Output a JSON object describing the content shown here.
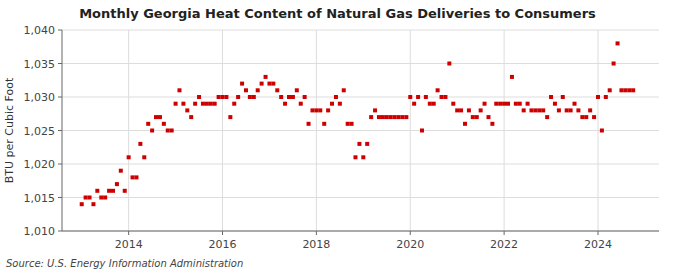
{
  "chart_data": {
    "type": "scatter",
    "title": "Monthly Georgia Heat Content of Natural Gas Deliveries to Consumers",
    "y_label": "BTU per Cubic Foot",
    "source": "Source: U.S. Energy Information Administration",
    "color": "#cc0000",
    "marker": "square",
    "grid": true,
    "xlim": [
      2012.58,
      2025.3
    ],
    "xticks": [
      2014,
      2016,
      2018,
      2020,
      2022,
      2024
    ],
    "ylim": [
      1010,
      1040
    ],
    "yticks": [
      {
        "value": 1010,
        "label": "1,010"
      },
      {
        "value": 1015,
        "label": "1,015"
      },
      {
        "value": 1020,
        "label": "1,020"
      },
      {
        "value": 1025,
        "label": "1,025"
      },
      {
        "value": 1030,
        "label": "1,030"
      },
      {
        "value": 1035,
        "label": "1,035"
      },
      {
        "value": 1040,
        "label": "1,040"
      }
    ],
    "x": [
      2013.0,
      2013.083,
      2013.167,
      2013.25,
      2013.333,
      2013.417,
      2013.5,
      2013.583,
      2013.667,
      2013.75,
      2013.833,
      2013.917,
      2014.0,
      2014.083,
      2014.167,
      2014.25,
      2014.333,
      2014.417,
      2014.5,
      2014.583,
      2014.667,
      2014.75,
      2014.833,
      2014.917,
      2015.0,
      2015.083,
      2015.167,
      2015.25,
      2015.333,
      2015.417,
      2015.5,
      2015.583,
      2015.667,
      2015.75,
      2015.833,
      2015.917,
      2016.0,
      2016.083,
      2016.167,
      2016.25,
      2016.333,
      2016.417,
      2016.5,
      2016.583,
      2016.667,
      2016.75,
      2016.833,
      2016.917,
      2017.0,
      2017.083,
      2017.167,
      2017.25,
      2017.333,
      2017.417,
      2017.5,
      2017.583,
      2017.667,
      2017.75,
      2017.833,
      2017.917,
      2018.0,
      2018.083,
      2018.167,
      2018.25,
      2018.333,
      2018.417,
      2018.5,
      2018.583,
      2018.667,
      2018.75,
      2018.833,
      2018.917,
      2019.0,
      2019.083,
      2019.167,
      2019.25,
      2019.333,
      2019.417,
      2019.5,
      2019.583,
      2019.667,
      2019.75,
      2019.833,
      2019.917,
      2020.0,
      2020.083,
      2020.167,
      2020.25,
      2020.333,
      2020.417,
      2020.5,
      2020.583,
      2020.667,
      2020.75,
      2020.833,
      2020.917,
      2021.0,
      2021.083,
      2021.167,
      2021.25,
      2021.333,
      2021.417,
      2021.5,
      2021.583,
      2021.667,
      2021.75,
      2021.833,
      2021.917,
      2022.0,
      2022.083,
      2022.167,
      2022.25,
      2022.333,
      2022.417,
      2022.5,
      2022.583,
      2022.667,
      2022.75,
      2022.833,
      2022.917,
      2023.0,
      2023.083,
      2023.167,
      2023.25,
      2023.333,
      2023.417,
      2023.5,
      2023.583,
      2023.667,
      2023.75,
      2023.833,
      2023.917,
      2024.0,
      2024.083,
      2024.167,
      2024.25,
      2024.333,
      2024.417,
      2024.5,
      2024.583,
      2024.667,
      2024.75
    ],
    "values": [
      1014,
      1015,
      1015,
      1014,
      1016,
      1015,
      1015,
      1016,
      1016,
      1017,
      1019,
      1016,
      1021,
      1018,
      1018,
      1023,
      1021,
      1026,
      1025,
      1027,
      1027,
      1026,
      1025,
      1025,
      1029,
      1031,
      1029,
      1028,
      1027,
      1029,
      1030,
      1029,
      1029,
      1029,
      1029,
      1030,
      1030,
      1030,
      1027,
      1029,
      1030,
      1032,
      1031,
      1030,
      1030,
      1031,
      1032,
      1033,
      1032,
      1032,
      1031,
      1030,
      1029,
      1030,
      1030,
      1031,
      1029,
      1030,
      1026,
      1028,
      1028,
      1028,
      1026,
      1028,
      1029,
      1030,
      1029,
      1031,
      1026,
      1026,
      1021,
      1023,
      1021,
      1023,
      1027,
      1028,
      1027,
      1027,
      1027,
      1027,
      1027,
      1027,
      1027,
      1027,
      1030,
      1029,
      1030,
      1025,
      1030,
      1029,
      1029,
      1031,
      1030,
      1030,
      1035,
      1029,
      1028,
      1028,
      1026,
      1028,
      1027,
      1027,
      1028,
      1029,
      1027,
      1026,
      1029,
      1029,
      1029,
      1029,
      1033,
      1029,
      1029,
      1028,
      1029,
      1028,
      1028,
      1028,
      1028,
      1027,
      1030,
      1029,
      1028,
      1030,
      1028,
      1028,
      1029,
      1028,
      1027,
      1027,
      1028,
      1027,
      1030,
      1025,
      1030,
      1031,
      1035,
      1038,
      1031,
      1031,
      1031,
      1031
    ]
  }
}
